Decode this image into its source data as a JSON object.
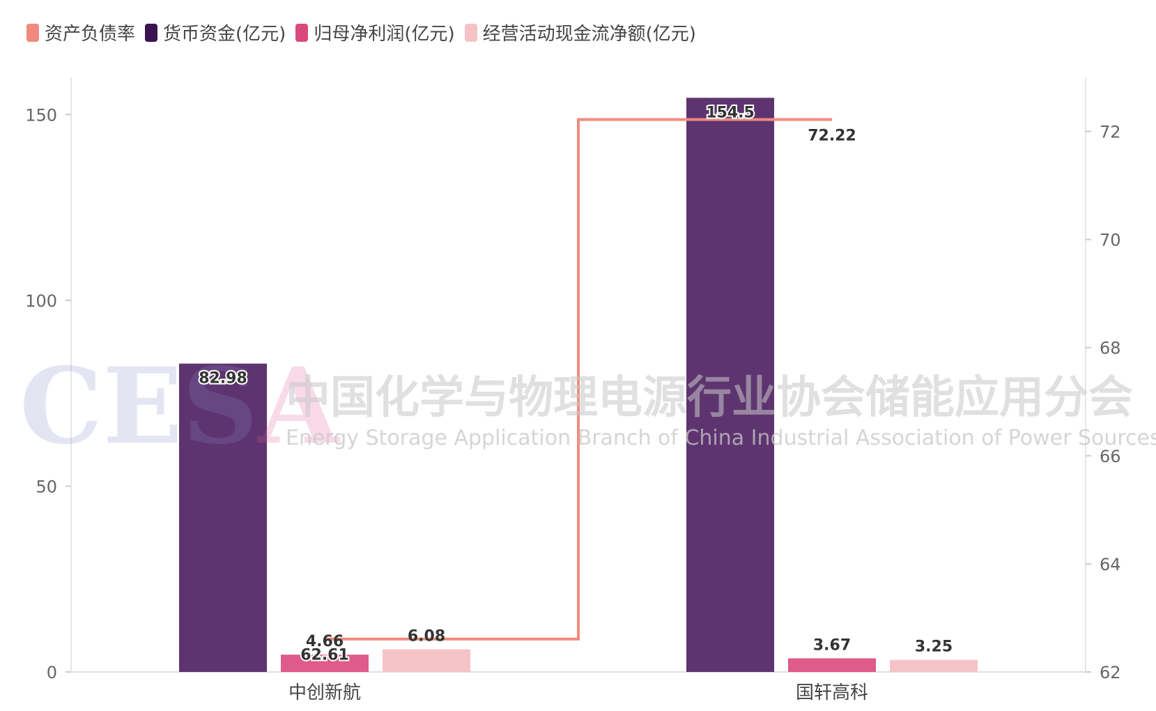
{
  "chart_data": {
    "type": "bar",
    "categories": [
      "中创新航",
      "国轩高科"
    ],
    "series": [
      {
        "name": "资产负债率",
        "kind": "line",
        "axis": "right",
        "color": "#f08a7e",
        "values": [
          62.61,
          72.22
        ]
      },
      {
        "name": "货币资金(亿元)",
        "kind": "bar",
        "axis": "left",
        "color": "#5e3470",
        "values": [
          82.98,
          154.5
        ]
      },
      {
        "name": "归母净利润(亿元)",
        "kind": "bar",
        "axis": "left",
        "color": "#de5b8a",
        "values": [
          4.66,
          3.67
        ]
      },
      {
        "name": "经营活动现金流净额(亿元)",
        "kind": "bar",
        "axis": "left",
        "color": "#f5c3c6",
        "values": [
          6.08,
          3.25
        ]
      }
    ],
    "legend_colors": [
      "#f08a7e",
      "#3a1350",
      "#d94a7c",
      "#f5c3c6"
    ],
    "y_left": {
      "min": 0,
      "max": 160,
      "ticks": [
        0,
        50,
        100,
        150
      ]
    },
    "y_right": {
      "min": 62,
      "max": 73,
      "ticks": [
        62,
        64,
        66,
        68,
        70,
        72
      ]
    },
    "line_style": "step",
    "legend_position": "top-left",
    "grid": false
  },
  "legend": [
    {
      "label": "资产负债率"
    },
    {
      "label": "货币资金(亿元)"
    },
    {
      "label": "归母净利润(亿元)"
    },
    {
      "label": "经营活动现金流净额(亿元)"
    }
  ],
  "watermark": {
    "logo": "CESA",
    "cn": "中国化学与物理电源行业协会储能应用分会",
    "en": "Energy Storage Application Branch of China Industrial Association of Power Sources"
  }
}
